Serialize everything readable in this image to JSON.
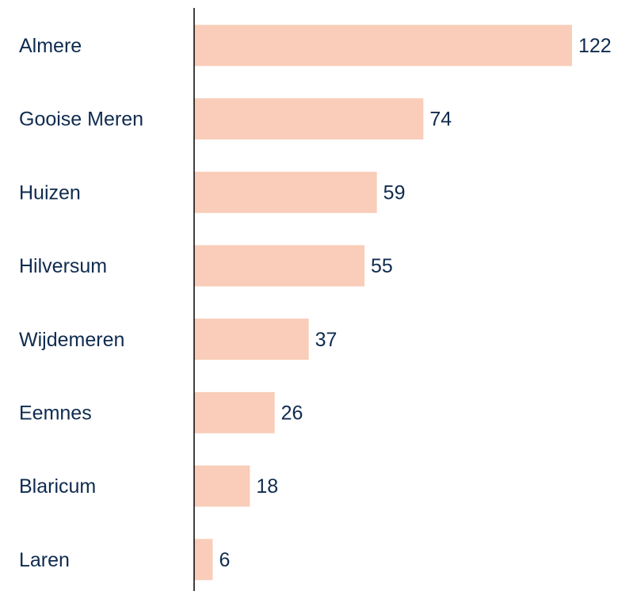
{
  "chart_data": {
    "type": "bar",
    "orientation": "horizontal",
    "categories": [
      "Almere",
      "Gooise Meren",
      "Huizen",
      "Hilversum",
      "Wijdemeren",
      "Eemnes",
      "Blaricum",
      "Laren"
    ],
    "values": [
      122,
      74,
      59,
      55,
      37,
      26,
      18,
      6
    ],
    "color": "#f9cdb9"
  }
}
